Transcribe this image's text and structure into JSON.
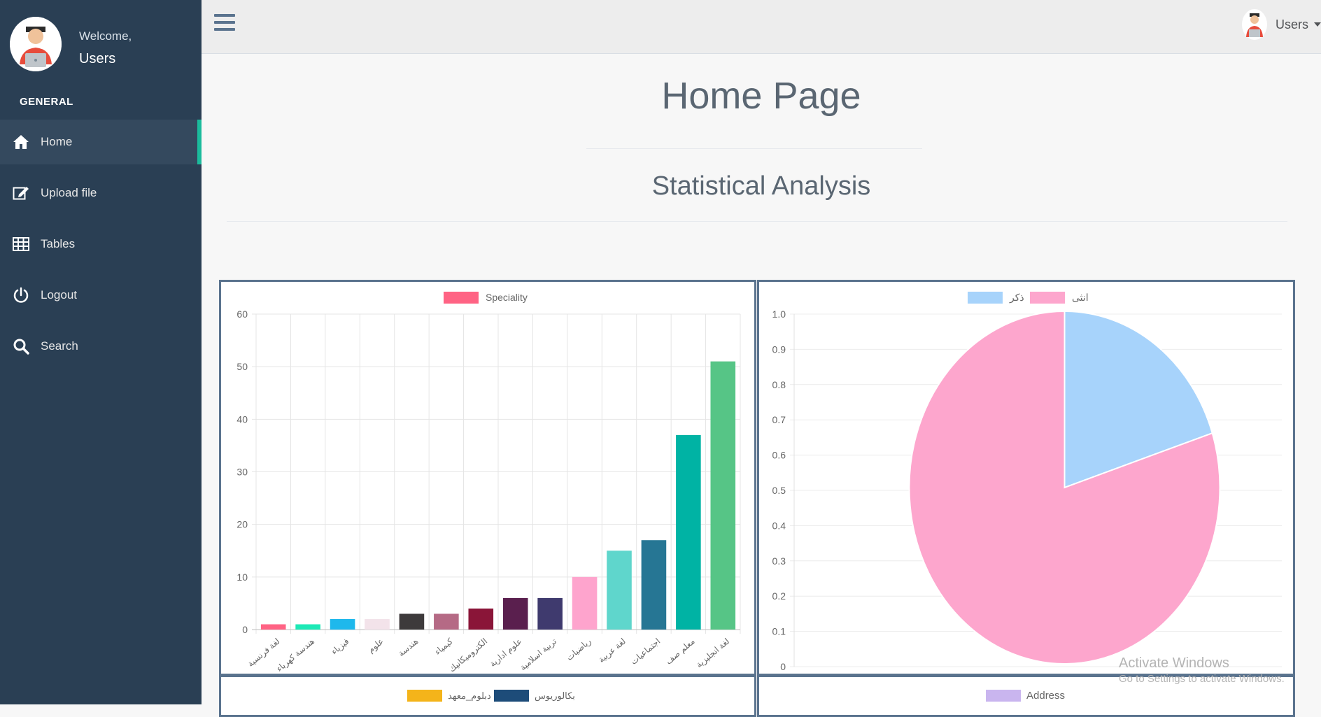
{
  "sidebar": {
    "welcome": "Welcome,",
    "username": "Users",
    "section_title": "GENERAL",
    "items": [
      {
        "label": "Home",
        "icon": "home-icon",
        "active": true
      },
      {
        "label": "Upload file",
        "icon": "edit-icon",
        "active": false
      },
      {
        "label": "Tables",
        "icon": "table-icon",
        "active": false
      },
      {
        "label": "Logout",
        "icon": "power-icon",
        "active": false
      },
      {
        "label": "Search",
        "icon": "search-icon",
        "active": false
      }
    ]
  },
  "topbar": {
    "menu_icon": "hamburger-icon",
    "user_label": "Users"
  },
  "main": {
    "title": "Home Page",
    "subtitle": "Statistical Analysis"
  },
  "colors": {
    "sidebar_bg": "#2a3f54",
    "accent": "#1abb9c",
    "panel_border": "#5a738e"
  },
  "chart_data": [
    {
      "type": "bar",
      "legend": [
        "Speciality"
      ],
      "legend_color": "#ff6384",
      "categories": [
        "لغة فرنسية",
        "هندسة كهرباء",
        "فيزياء",
        "علوم",
        "هندسة",
        "كيمياء",
        "الكتروميكانيك",
        "علوم ادارية",
        "تربية اسلامية",
        "رياضيات",
        "لغة عربية",
        "اجتماعيات",
        "معلم صف",
        "لغة انجليزية"
      ],
      "values": [
        1,
        1,
        2,
        2,
        3,
        3,
        4,
        6,
        6,
        10,
        15,
        17,
        37,
        51
      ],
      "colors": [
        "#ff6384",
        "#1de9b6",
        "#1eb8ec",
        "#f3e3ea",
        "#3d3a3b",
        "#b56a85",
        "#8a1538",
        "#5a1f4e",
        "#3f3a6e",
        "#fea4cd",
        "#5fd6cc",
        "#267694",
        "#00b3a4",
        "#56c586"
      ],
      "ylim": [
        0,
        60
      ],
      "yticks": [
        0,
        10,
        20,
        30,
        40,
        50,
        60
      ],
      "grid": true,
      "legend_position": "top"
    },
    {
      "type": "pie",
      "legend": [
        "ذكر",
        "انثى"
      ],
      "values": [
        0.2,
        0.8
      ],
      "colors": [
        "#a7d3fb",
        "#fda6cd"
      ],
      "axis_ticks": [
        "0",
        "0.1",
        "0.2",
        "0.3",
        "0.4",
        "0.5",
        "0.6",
        "0.7",
        "0.8",
        "0.9",
        "1.0"
      ],
      "legend_position": "top"
    },
    {
      "type": "bar",
      "legend": [
        "بكالوريوس",
        "دبلوم_معهد"
      ],
      "legend_colors": [
        "#1d4c79",
        "#f4b41a"
      ],
      "legend_position": "top"
    },
    {
      "type": "bar",
      "legend": [
        "Address"
      ],
      "legend_colors": [
        "#c9b5ef"
      ],
      "legend_position": "top"
    }
  ],
  "watermark": {
    "line1": "Activate Windows",
    "line2": "Go to Settings to activate Windows."
  }
}
